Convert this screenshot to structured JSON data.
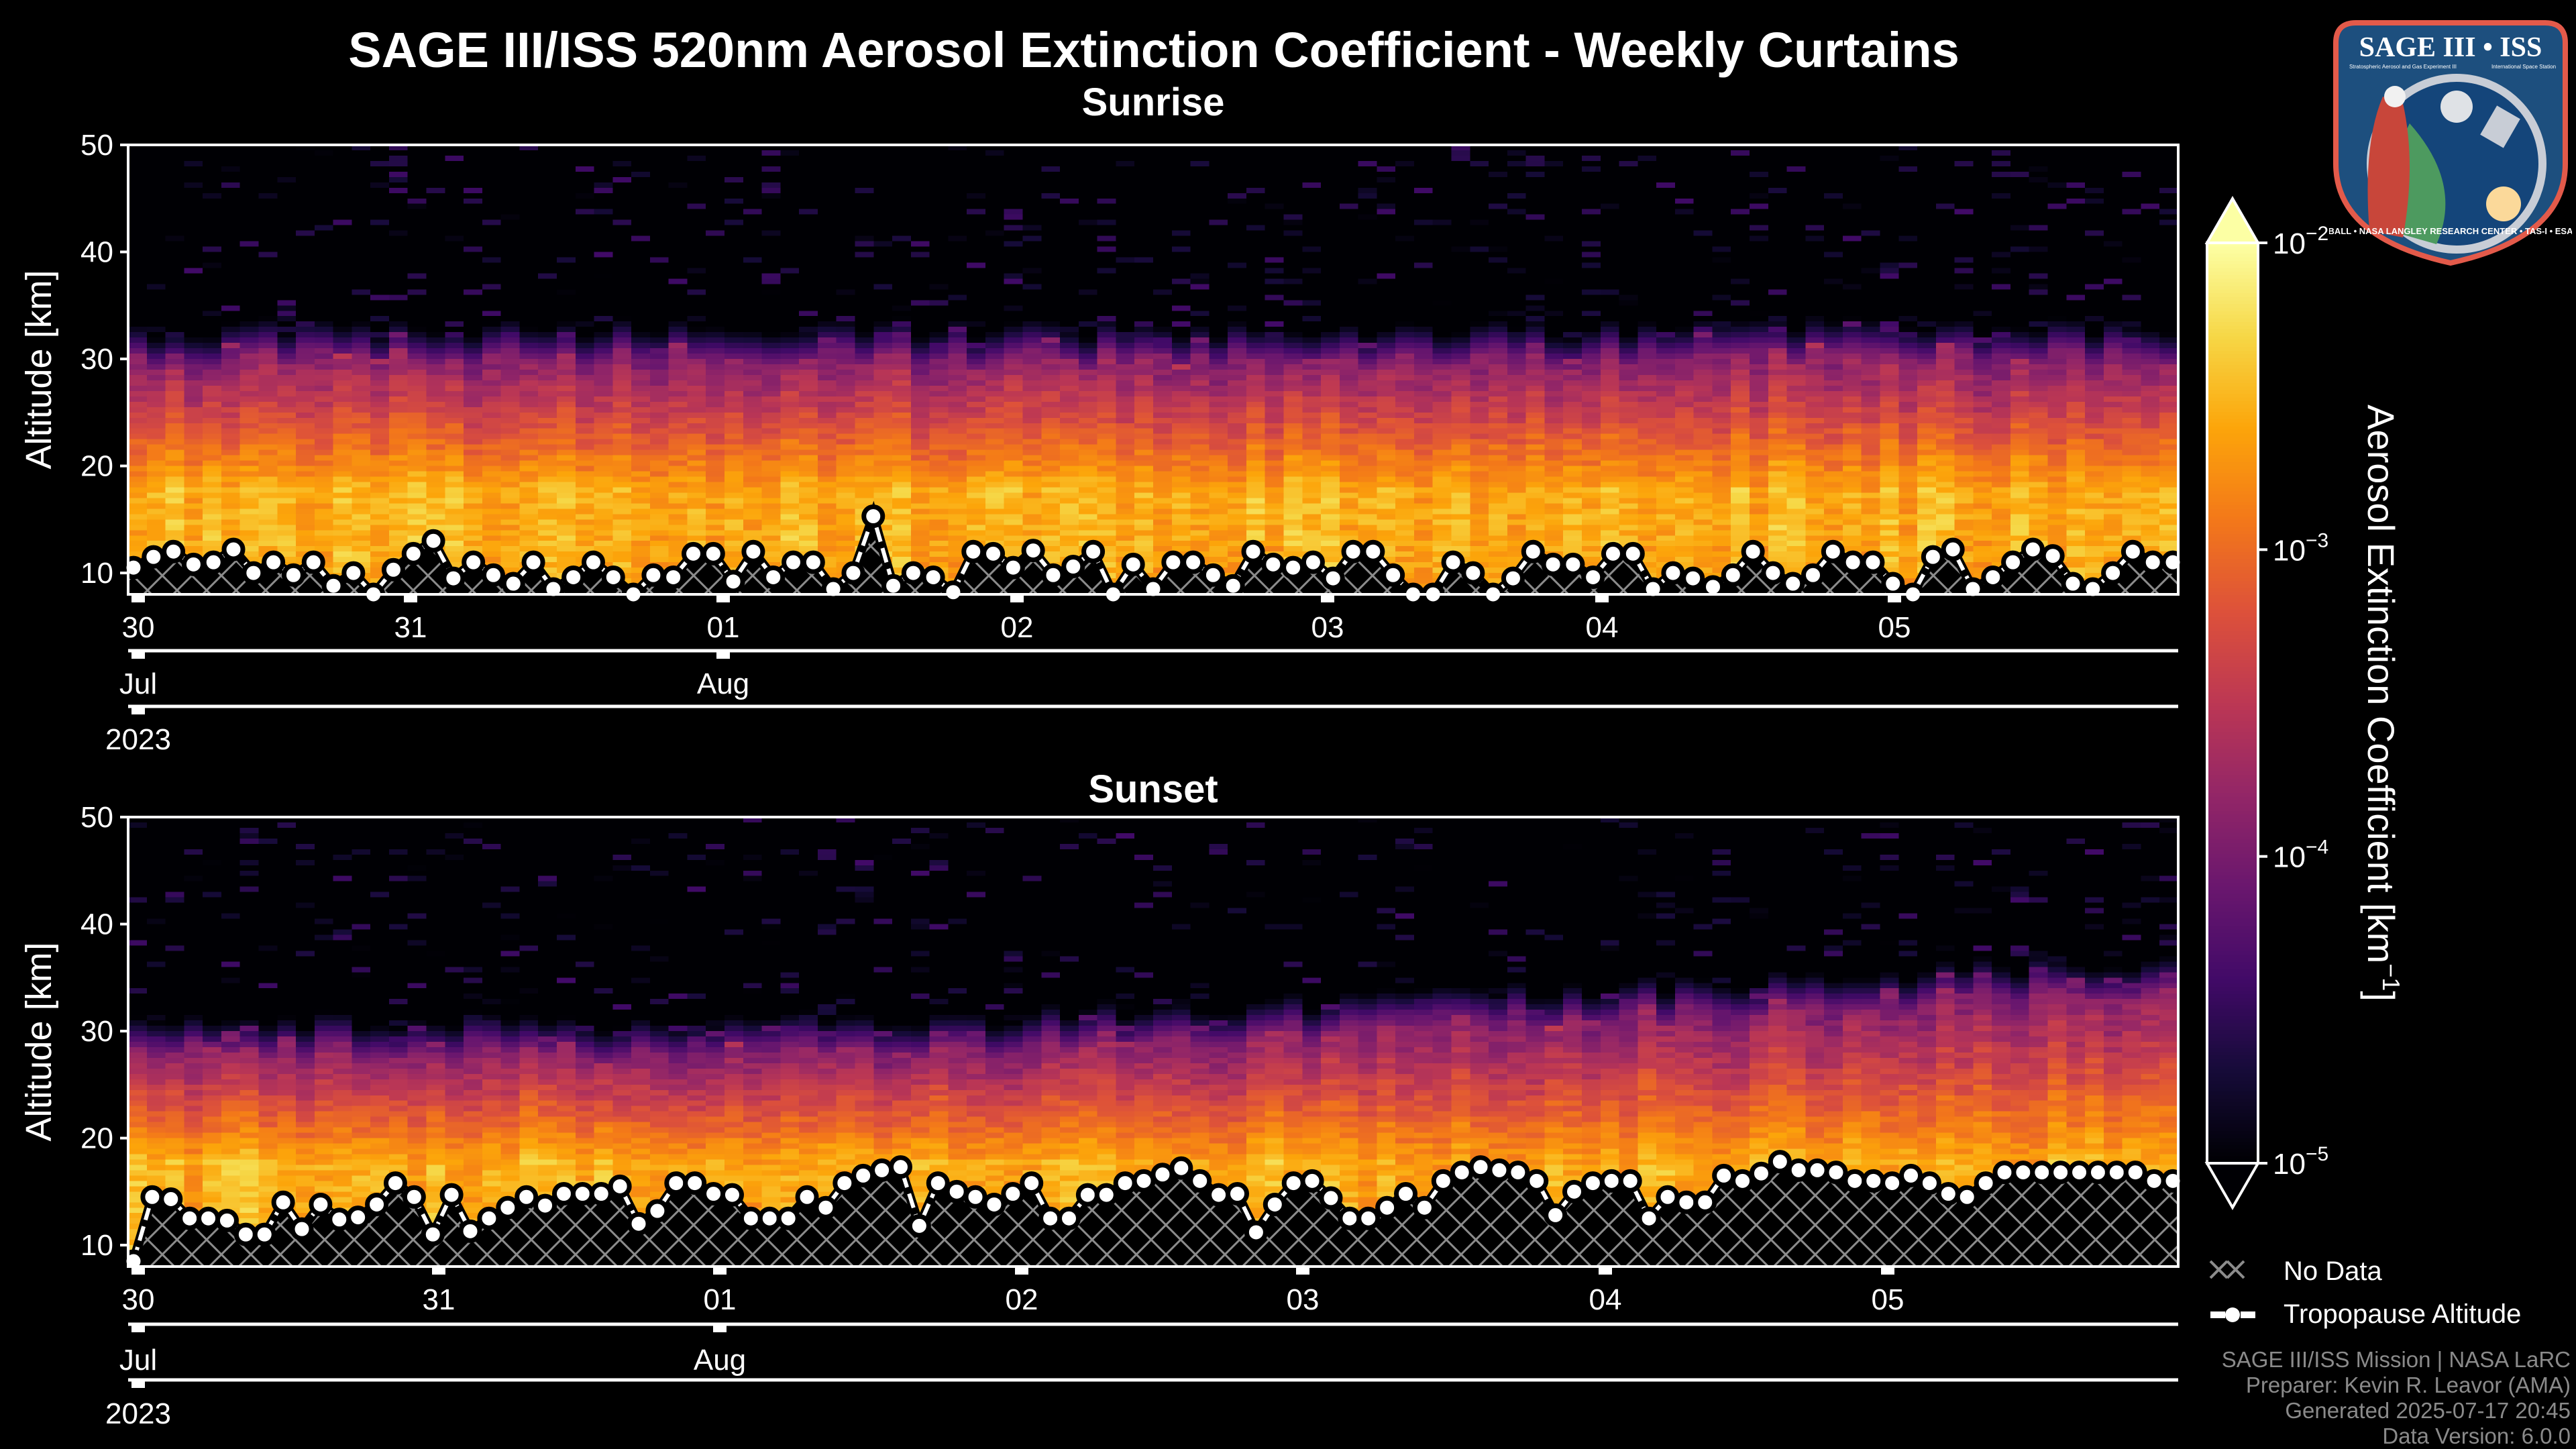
{
  "title": "SAGE III/ISS 520nm Aerosol Extinction Coefficient - Weekly Curtains",
  "logo": {
    "top": "SAGE III • ISS",
    "sub1": "Stratospheric Aerosol and Gas Experiment III",
    "sub2": "International Space Station",
    "ring": "BALL • NASA LANGLEY RESEARCH CENTER • TAS-I • ESA"
  },
  "colors": {
    "background": "#000000",
    "axes": "#ffffff",
    "credits": "#8a8a8a",
    "hatch": "#8c8c8c"
  },
  "chart_data": [
    {
      "type": "heatmap",
      "title": "Sunrise",
      "ylabel": "Altitude [km]",
      "ylim": [
        8,
        50
      ],
      "yticks": [
        "10",
        "20",
        "30",
        "40",
        "50"
      ],
      "xticks_day": [
        "30",
        "31",
        "01",
        "02",
        "03",
        "04",
        "05"
      ],
      "xticks_month": [
        "Jul",
        "Aug"
      ],
      "xticks_year": [
        "2023"
      ],
      "aerosol_layer_top_km": 30,
      "tropopause_km": [
        10.5,
        11.5,
        12,
        10.8,
        11,
        12.2,
        10,
        11,
        9.8,
        11,
        8.8,
        10,
        8,
        10.3,
        11.8,
        13,
        9.5,
        11,
        9.8,
        9,
        11,
        8.5,
        9.6,
        11,
        9.6,
        8,
        9.8,
        9.6,
        11.8,
        11.8,
        9.2,
        12,
        9.6,
        11,
        11,
        8.5,
        10,
        15.3,
        8.8,
        10,
        9.6,
        8.2,
        12,
        11.8,
        10.5,
        12.1,
        9.8,
        10.6,
        12,
        8,
        10.8,
        8.5,
        11,
        11,
        9.8,
        8.8,
        12,
        10.8,
        10.5,
        11,
        9.5,
        12,
        12,
        9.8,
        8,
        8,
        11,
        10,
        8,
        9.5,
        12,
        10.8,
        10.8,
        9.6,
        11.8,
        11.8,
        8.5,
        10,
        9.5,
        8.7,
        9.8,
        12,
        10,
        9,
        9.8,
        12,
        11,
        11,
        9,
        8,
        11.5,
        12.2,
        8.5,
        9.6,
        11,
        12.2,
        11.6,
        9,
        8.5,
        10,
        12,
        11,
        11
      ]
    },
    {
      "type": "heatmap",
      "title": "Sunset",
      "ylabel": "Altitude [km]",
      "ylim": [
        8,
        50
      ],
      "yticks": [
        "10",
        "20",
        "30",
        "40",
        "50"
      ],
      "xticks_day": [
        "30",
        "31",
        "01",
        "02",
        "03",
        "04",
        "05"
      ],
      "xticks_month": [
        "Jul",
        "Aug"
      ],
      "xticks_year": [
        "2023"
      ],
      "aerosol_layer_top_km": [
        28,
        34
      ],
      "tropopause_km": [
        8.5,
        14.5,
        14.3,
        12.5,
        12.5,
        12.3,
        11,
        11,
        14,
        11.5,
        13.8,
        12.4,
        12.6,
        13.8,
        15.8,
        14.5,
        11,
        14.7,
        11.3,
        12.5,
        13.5,
        14.5,
        13.7,
        14.8,
        14.8,
        14.8,
        15.5,
        12,
        13.2,
        15.8,
        15.8,
        14.8,
        14.7,
        12.5,
        12.5,
        12.5,
        14.5,
        13.5,
        15.8,
        16.5,
        17,
        17.3,
        11.8,
        15.8,
        15,
        14.5,
        13.8,
        14.8,
        15.8,
        12.5,
        12.5,
        14.7,
        14.7,
        15.8,
        16,
        16.6,
        17.2,
        16,
        14.7,
        14.8,
        11.2,
        13.8,
        15.8,
        16,
        14.4,
        12.5,
        12.5,
        13.5,
        14.8,
        13.5,
        16,
        16.8,
        17.3,
        17,
        16.8,
        16,
        12.8,
        15,
        15.8,
        16,
        16,
        12.5,
        14.5,
        14,
        14,
        16.5,
        16,
        16.7,
        17.8,
        17,
        17,
        16.8,
        16,
        16,
        15.8,
        16.5,
        15.8,
        14.8,
        14.5,
        15.8,
        16.8,
        16.8,
        16.8,
        16.8,
        16.8,
        16.8,
        16.8,
        16.8,
        16,
        16
      ]
    }
  ],
  "colorbar": {
    "label": "Aerosol Extinction Coefficient [km",
    "label_sup": "−1",
    "label_end": "]",
    "colormap": "inferno",
    "scale": "log",
    "range": [
      1e-05,
      0.01
    ],
    "ticks": [
      {
        "base": "10",
        "exp": "−2"
      },
      {
        "base": "10",
        "exp": "−3"
      },
      {
        "base": "10",
        "exp": "−4"
      },
      {
        "base": "10",
        "exp": "−5"
      }
    ]
  },
  "legend": {
    "no_data": "No Data",
    "tropopause": "Tropopause Altitude"
  },
  "credits": [
    "SAGE III/ISS Mission | NASA LaRC",
    "Preparer: Kevin R. Leavor (AMA)",
    "Generated 2025-07-17 20:45",
    "Data Version: 6.0.0"
  ]
}
